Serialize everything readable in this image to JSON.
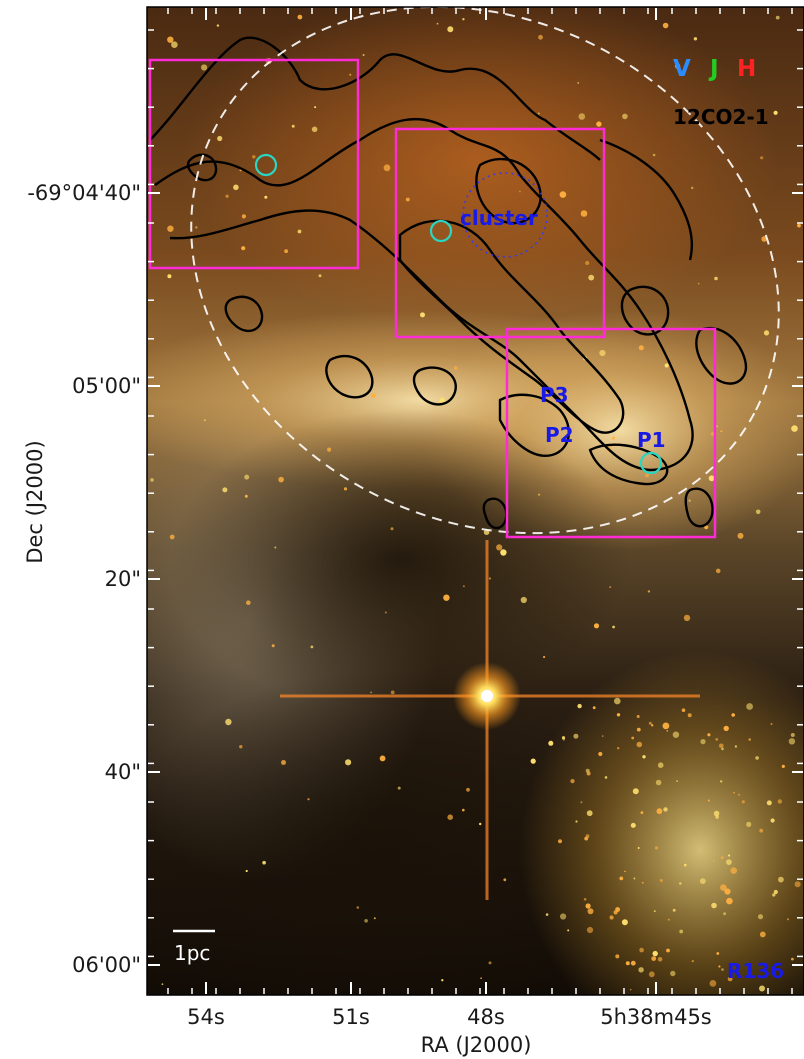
{
  "axes": {
    "xlabel": "RA (J2000)",
    "ylabel": "Dec (J2000)",
    "xticks": [
      "54s",
      "51s",
      "48s",
      "5h38m45s"
    ],
    "yticks": [
      "-69°04'40\"",
      "05'00\"",
      "20\"",
      "40\"",
      "06'00\""
    ]
  },
  "legend": {
    "letters": [
      {
        "text": "V",
        "color": "#2a8cff"
      },
      {
        "text": "J",
        "color": "#22cc22"
      },
      {
        "text": "H",
        "color": "#ff2222"
      }
    ],
    "contour_label": "12CO2-1"
  },
  "annotations": {
    "cluster": "cluster",
    "p1": "P1",
    "p2": "P2",
    "p3": "P3",
    "r136": "R136",
    "scale_bar": "1pc"
  },
  "colors": {
    "box": "#ff2bd6",
    "marker_circle": "#29d6c4",
    "contour": "#000000",
    "ellipse": "#ffffff",
    "label_blue": "#1a1ae6"
  }
}
